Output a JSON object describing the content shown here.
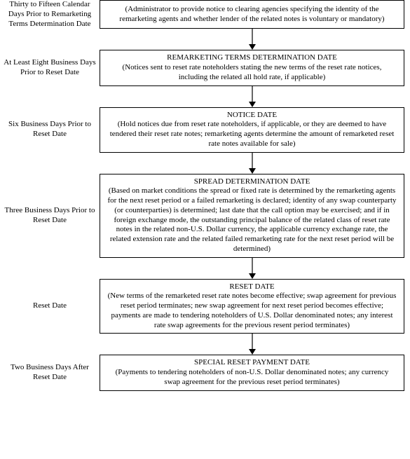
{
  "diagram": {
    "type": "flowchart",
    "background_color": "#ffffff",
    "border_color": "#000000",
    "text_color": "#000000",
    "arrow_color": "#000000",
    "font_family": "Times New Roman",
    "title_fontsize": 11,
    "body_fontsize": 11,
    "label_fontsize": 11,
    "arrow_height": 30,
    "steps": [
      {
        "label": "Thirty to Fifteen Calendar Days Prior to Remarketing Terms Determination Date",
        "title": "",
        "body": "(Administrator to provide notice to clearing agencies specifying the identity of the remarketing agents and whether lender of the related notes is voluntary or mandatory)"
      },
      {
        "label": "At Least Eight Business Days Prior to Reset Date",
        "title": "REMARKETING TERMS DETERMINATION DATE",
        "body": "(Notices sent to reset rate noteholders stating the new terms of the reset rate notices, including the related all hold rate, if applicable)"
      },
      {
        "label": "Six Business Days Prior to Reset Date",
        "title": "NOTICE DATE",
        "body": "(Hold notices due from reset rate noteholders, if applicable, or they are deemed to have tendered their reset rate notes; remarketing agents determine the amount of remarketed reset rate notes available for sale)"
      },
      {
        "label": "Three Business Days Prior to Reset Date",
        "title": "SPREAD DETERMINATION DATE",
        "body": "(Based on market conditions the spread or fixed rate is determined by the remarketing agents for the next reset period or a failed remarketing is declared; identity of any swap counterparty (or counterparties) is determined; last date that the call option may be exercised; and if in foreign exchange mode, the outstanding principal balance of the related class of reset rate notes in the related non-U.S. Dollar currency, the applicable currency exchange rate, the related extension rate and the related failed remarketing rate for the next reset period will be determined)"
      },
      {
        "label": "Reset Date",
        "title": "RESET DATE",
        "body": "(New terms of the remarketed reset rate notes become effective; swap agreement for previous reset period terminates; new swap agreement for next reset period becomes effective; payments are made to tendering noteholders of U.S. Dollar denominated notes; any interest rate swap agreements for the previous resent period terminates)"
      },
      {
        "label": "Two Business Days After Reset Date",
        "title": "SPECIAL RESET PAYMENT DATE",
        "body": "(Payments to tendering noteholders of non-U.S. Dollar denominated notes; any currency swap agreement for the previous reset period terminates)"
      }
    ]
  }
}
